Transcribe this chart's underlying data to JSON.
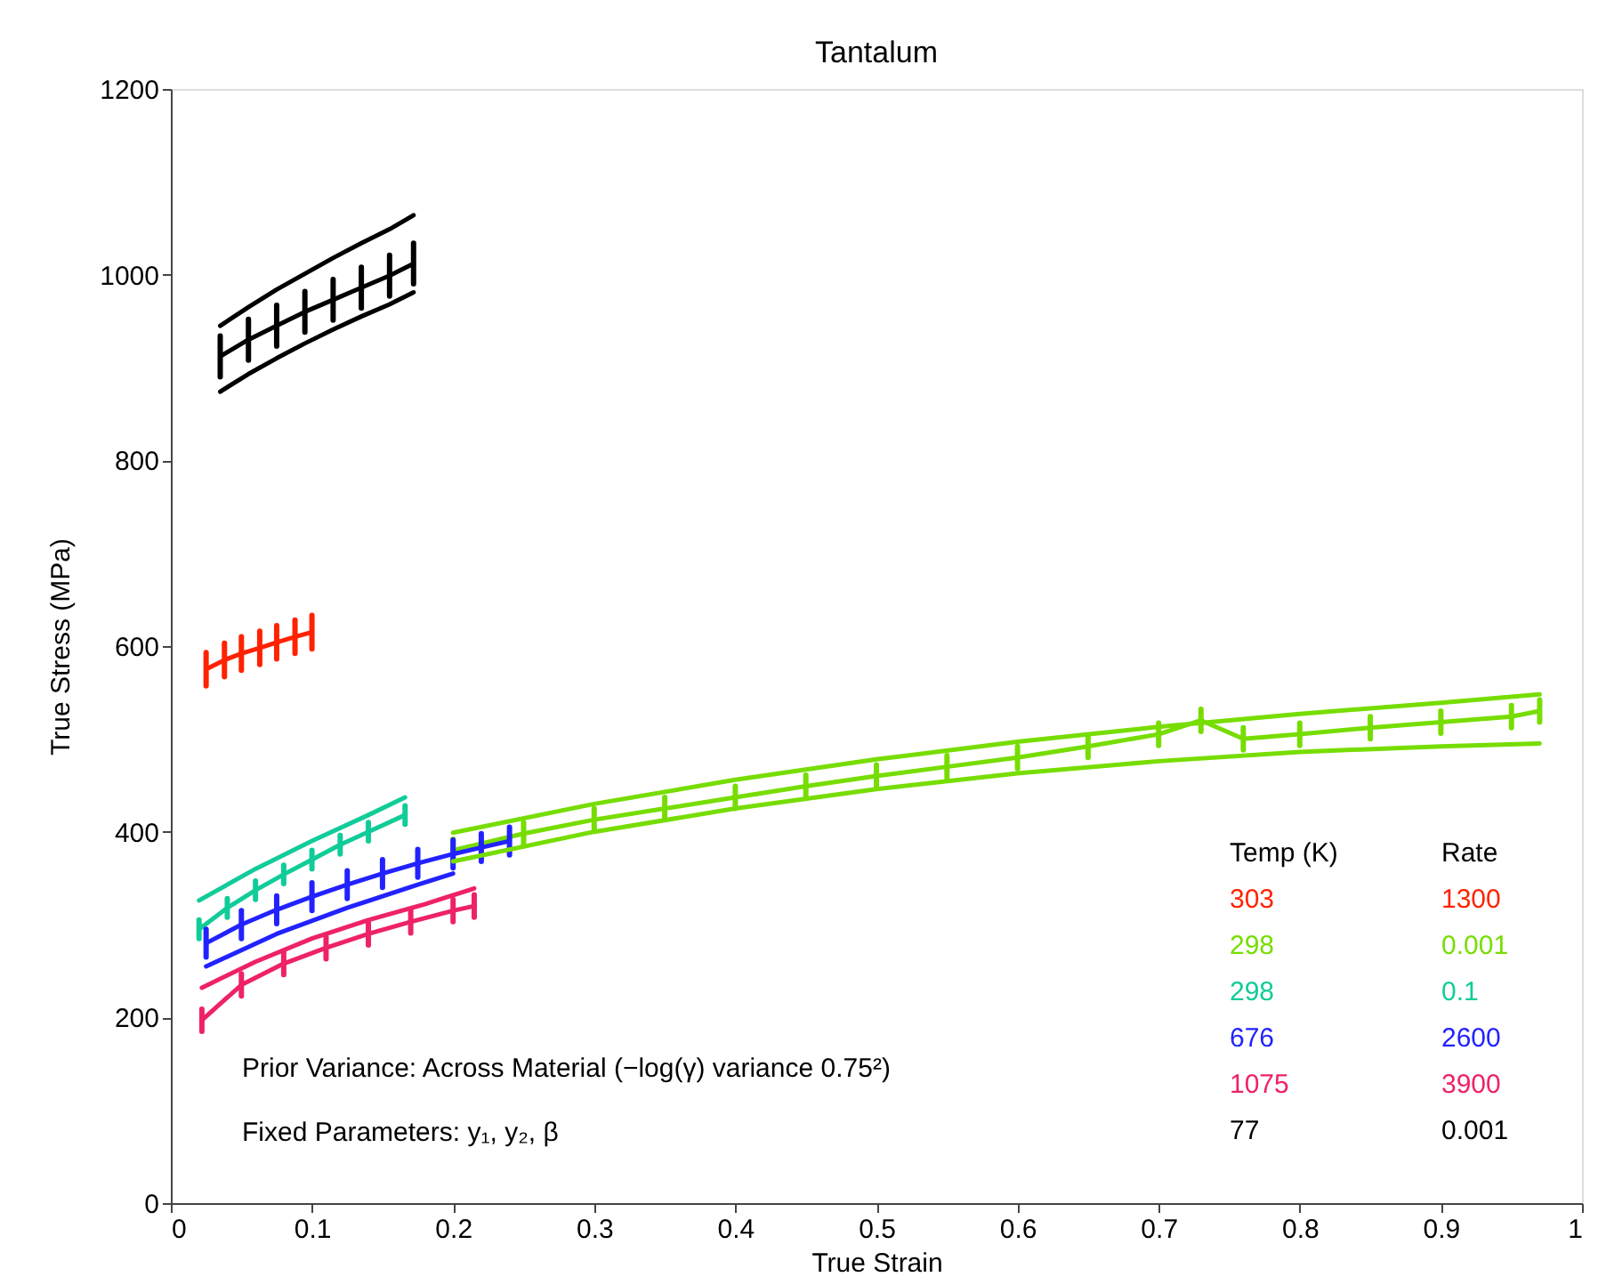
{
  "chart_data": {
    "type": "line",
    "title": "Tantalum",
    "xlabel": "True Strain",
    "ylabel": "True Stress (MPa)",
    "xlim": [
      0,
      1
    ],
    "ylim": [
      0,
      1200
    ],
    "xticks": [
      0,
      0.1,
      0.2,
      0.3,
      0.4,
      0.5,
      0.6,
      0.7,
      0.8,
      0.9,
      1
    ],
    "yticks": [
      0,
      200,
      400,
      600,
      800,
      1000,
      1200
    ],
    "grid": false,
    "marker": "none",
    "line_style": "solid",
    "series": [
      {
        "color": "#ff2200",
        "x": [
          0.025,
          0.038,
          0.05,
          0.063,
          0.075,
          0.088,
          0.1
        ],
        "values": [
          575,
          585,
          592,
          598,
          604,
          610,
          615
        ],
        "errors": [
          18,
          18,
          18,
          18,
          18,
          18,
          18
        ]
      },
      {
        "color": "#77dd00",
        "x": [
          0.2,
          0.25,
          0.3,
          0.35,
          0.4,
          0.45,
          0.5,
          0.55,
          0.6,
          0.65,
          0.7,
          0.73,
          0.76,
          0.8,
          0.85,
          0.9,
          0.95,
          0.97
        ],
        "values": [
          380,
          398,
          413,
          425,
          437,
          449,
          460,
          470,
          480,
          492,
          505,
          520,
          500,
          505,
          512,
          518,
          524,
          530
        ],
        "errors": [
          12,
          12,
          12,
          12,
          12,
          12,
          12,
          12,
          12,
          12,
          12,
          12,
          12,
          12,
          12,
          12,
          12,
          12
        ]
      },
      {
        "color": "#11cc99",
        "x": [
          0.02,
          0.04,
          0.06,
          0.08,
          0.1,
          0.12,
          0.14,
          0.166
        ],
        "values": [
          295,
          318,
          337,
          354,
          370,
          386,
          400,
          418
        ],
        "errors": [
          10,
          10,
          10,
          10,
          10,
          10,
          10,
          10
        ]
      },
      {
        "color": "#2222ff",
        "x": [
          0.025,
          0.05,
          0.075,
          0.1,
          0.125,
          0.15,
          0.175,
          0.2,
          0.22,
          0.24
        ],
        "values": [
          280,
          300,
          316,
          330,
          343,
          355,
          366,
          376,
          383,
          390
        ],
        "errors": [
          15,
          15,
          15,
          15,
          15,
          15,
          15,
          15,
          15,
          15
        ]
      },
      {
        "color": "#ee2266",
        "x": [
          0.022,
          0.05,
          0.08,
          0.11,
          0.14,
          0.17,
          0.2,
          0.215
        ],
        "values": [
          197,
          235,
          258,
          275,
          290,
          303,
          315,
          320
        ],
        "errors": [
          12,
          12,
          12,
          12,
          12,
          12,
          12,
          12
        ]
      },
      {
        "color": "#000000",
        "x": [
          0.035,
          0.055,
          0.075,
          0.095,
          0.115,
          0.135,
          0.155,
          0.172
        ],
        "values": [
          912,
          930,
          945,
          960,
          973,
          986,
          999,
          1012
        ],
        "errors": [
          22,
          22,
          22,
          22,
          22,
          22,
          22,
          22
        ]
      },
      {
        "color": "#77dd00",
        "x": [
          0.2,
          0.3,
          0.4,
          0.5,
          0.6,
          0.7,
          0.8,
          0.9,
          0.97
        ],
        "values": [
          399,
          430,
          456,
          478,
          497,
          513,
          527,
          539,
          548
        ]
      },
      {
        "color": "#77dd00",
        "x": [
          0.2,
          0.3,
          0.4,
          0.5,
          0.6,
          0.7,
          0.8,
          0.9,
          0.97
        ],
        "values": [
          368,
          400,
          425,
          446,
          463,
          476,
          486,
          492,
          495
        ]
      },
      {
        "color": "#11cc99",
        "x": [
          0.02,
          0.06,
          0.1,
          0.14,
          0.166
        ],
        "values": [
          326,
          360,
          390,
          418,
          437
        ]
      },
      {
        "color": "#2222ff",
        "x": [
          0.025,
          0.075,
          0.125,
          0.175,
          0.2
        ],
        "values": [
          255,
          290,
          318,
          343,
          355
        ]
      },
      {
        "color": "#ee2266",
        "x": [
          0.022,
          0.06,
          0.1,
          0.14,
          0.18,
          0.215
        ],
        "values": [
          232,
          260,
          285,
          305,
          322,
          339
        ]
      },
      {
        "color": "#000000",
        "x": [
          0.035,
          0.055,
          0.075,
          0.095,
          0.115,
          0.135,
          0.155,
          0.172
        ],
        "values": [
          945,
          965,
          984,
          1001,
          1018,
          1034,
          1049,
          1064
        ]
      },
      {
        "color": "#000000",
        "x": [
          0.035,
          0.055,
          0.075,
          0.095,
          0.115,
          0.135,
          0.155,
          0.172
        ],
        "values": [
          874,
          893,
          910,
          926,
          941,
          955,
          968,
          981
        ]
      }
    ],
    "annotations": [
      "Temp (K)",
      "Rate",
      "303",
      "1300",
      "298",
      "0.001",
      "298",
      "0.1",
      "676",
      "2600",
      "1075",
      "3900",
      "77",
      "0.001",
      "Prior Variance: Across Material (−log(γ) variance 0.75²)",
      "Fixed Parameters: y₁, y₂, β"
    ]
  }
}
